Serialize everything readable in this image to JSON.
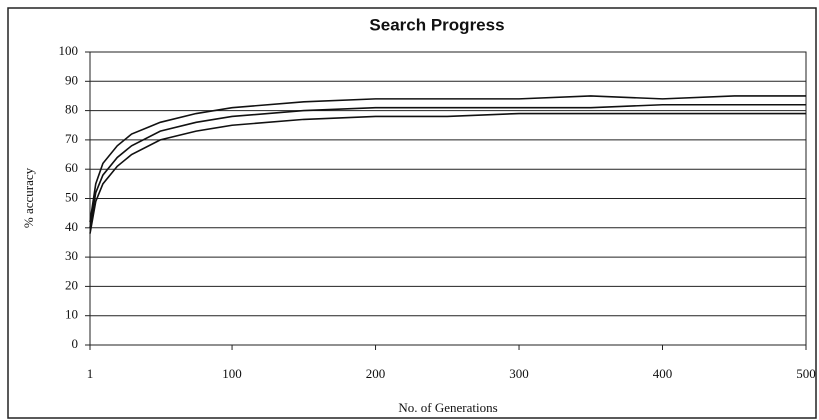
{
  "chart_data": {
    "type": "line",
    "title": "Search Progress",
    "x_label": "No. of Generations",
    "y_label": "% accuracy",
    "x": [
      1,
      5,
      10,
      20,
      30,
      50,
      75,
      100,
      150,
      200,
      250,
      300,
      350,
      400,
      450,
      500
    ],
    "series": [
      {
        "color": "#111111",
        "values": [
          42,
          55,
          62,
          68,
          72,
          76,
          79,
          81,
          83,
          84,
          84,
          84,
          85,
          84,
          85,
          85
        ]
      },
      {
        "color": "#111111",
        "values": [
          40,
          52,
          58,
          64,
          68,
          73,
          76,
          78,
          80,
          81,
          81,
          81,
          81,
          82,
          82,
          82
        ]
      },
      {
        "color": "#111111",
        "values": [
          38,
          49,
          55,
          61,
          65,
          70,
          73,
          75,
          77,
          78,
          78,
          79,
          79,
          79,
          79,
          79
        ]
      }
    ],
    "xlim": [
      1,
      500
    ],
    "xticks": [
      1,
      100,
      200,
      300,
      400,
      500
    ],
    "ylim": [
      0,
      100
    ],
    "yticks": [
      0,
      10,
      20,
      30,
      40,
      50,
      60,
      70,
      80,
      90,
      100
    ],
    "grid": true
  }
}
